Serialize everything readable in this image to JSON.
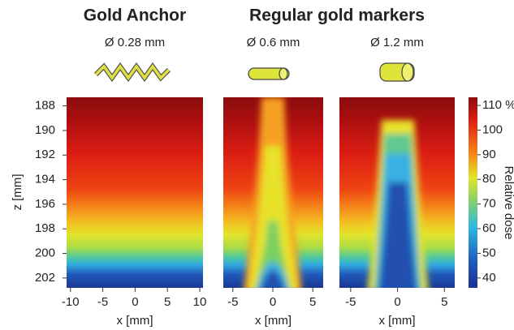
{
  "titles": {
    "gold_anchor": "Gold Anchor",
    "regular": "Regular gold markers"
  },
  "ylabel": "z  [mm]",
  "ylim": [
    187.3,
    202.8
  ],
  "yticks": [
    188,
    190,
    192,
    194,
    196,
    198,
    200,
    202
  ],
  "panels": [
    {
      "diameter": "Ø 0.28 mm",
      "xlim": [
        -10.6,
        10.5
      ],
      "xticks": [
        -10,
        -5,
        0,
        5,
        10
      ],
      "xlabel": "x  [mm]"
    },
    {
      "diameter": "Ø 0.6 mm",
      "xlim": [
        -6.2,
        6.3
      ],
      "xticks": [
        -5,
        0,
        5
      ],
      "xlabel": "x  [mm]"
    },
    {
      "diameter": "Ø 1.2 mm",
      "xlim": [
        -6.2,
        6.1
      ],
      "xticks": [
        -5,
        0,
        5
      ],
      "xlabel": "x  [mm]"
    }
  ],
  "colorbar": {
    "label": "Relative dose",
    "lim": [
      36,
      113.3
    ],
    "ticks": [
      {
        "value": 110,
        "label": "110 %"
      },
      100,
      90,
      80,
      70,
      60,
      50,
      40
    ]
  }
}
